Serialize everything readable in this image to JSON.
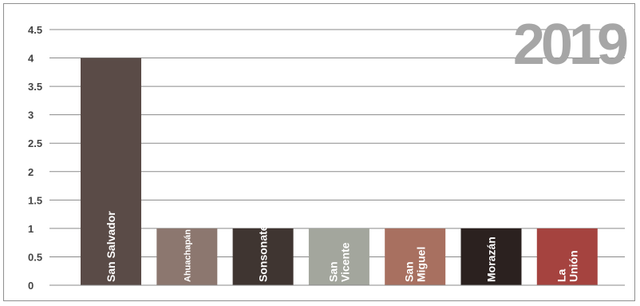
{
  "chart_data": {
    "type": "bar",
    "title": "2019",
    "categories": [
      "San Salvador",
      "Ahuachapán",
      "Sonsonate",
      "San Vicente",
      "San Miguel",
      "Morazán",
      "La Unión"
    ],
    "category_lines": [
      [
        "San Salvador"
      ],
      [
        "Ahuachapán"
      ],
      [
        "Sonsonate"
      ],
      [
        "San",
        "Vicente"
      ],
      [
        "San",
        "Miguel"
      ],
      [
        "Morazán"
      ],
      [
        "La",
        "Unión"
      ]
    ],
    "values": [
      4,
      1,
      1,
      1,
      1,
      1,
      1
    ],
    "colors": [
      "#5a4b47",
      "#8c776f",
      "#3f3531",
      "#a3a69d",
      "#a87060",
      "#2b211f",
      "#a5433f"
    ],
    "yticks": [
      "0",
      "0.5",
      "1",
      "1.5",
      "2",
      "2.5",
      "3",
      "3.5",
      "4",
      "4.5"
    ],
    "ylim": [
      0,
      4.5
    ],
    "xlabel": "",
    "ylabel": "",
    "grid": true,
    "legend": "none"
  }
}
